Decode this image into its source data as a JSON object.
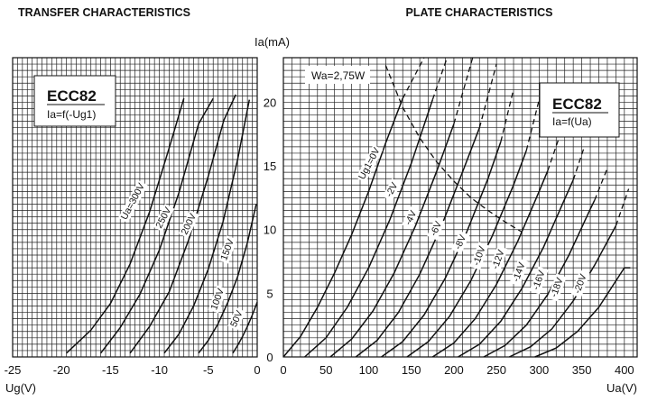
{
  "chart_data": [
    {
      "type": "line",
      "title": "TRANSFER CHARACTERISTICS",
      "xlabel": "Ug(V)",
      "ylabel": "",
      "xlim": [
        -25,
        0
      ],
      "ylim": [
        0,
        23.5
      ],
      "xticks": [
        "-25",
        "-20",
        "-15",
        "-10",
        "-5",
        "0"
      ],
      "legend_box": {
        "title": "ECC82",
        "subtitle": "Ia=f(-Ug1)"
      },
      "series": [
        {
          "name": "Ua=300V",
          "x": [
            -19.5,
            -17,
            -15,
            -13,
            -11,
            -9,
            -7.5
          ],
          "y": [
            0.3,
            2.1,
            4.2,
            7.3,
            11.4,
            16.4,
            20.3
          ]
        },
        {
          "name": "250V",
          "x": [
            -16,
            -14,
            -12,
            -10,
            -8,
            -6,
            -4.5
          ],
          "y": [
            0.3,
            2.3,
            4.9,
            8.4,
            12.9,
            18.3,
            20.3
          ]
        },
        {
          "name": "200V",
          "x": [
            -13,
            -11,
            -9,
            -7,
            -5,
            -3.4,
            -2.2
          ],
          "y": [
            0.3,
            2.4,
            5.1,
            9.2,
            14.2,
            18.6,
            20.6
          ]
        },
        {
          "name": "150V",
          "x": [
            -9.5,
            -8,
            -6.5,
            -5,
            -3.5,
            -2,
            -0.8
          ],
          "y": [
            0.3,
            1.8,
            4.0,
            6.9,
            10.6,
            15.5,
            20.2
          ]
        },
        {
          "name": "100V",
          "x": [
            -6,
            -5,
            -4,
            -3,
            -2,
            -1,
            -0.1
          ],
          "y": [
            0.3,
            1.3,
            2.6,
            4.3,
            6.3,
            9.0,
            12.0
          ]
        },
        {
          "name": "50V",
          "x": [
            -2.5,
            -2,
            -1.5,
            -1,
            -0.5,
            0
          ],
          "y": [
            0.3,
            0.9,
            1.6,
            2.4,
            3.3,
            4.3
          ]
        }
      ]
    },
    {
      "type": "line",
      "title": "PLATE CHARACTERISTICS",
      "xlabel": "Ua(V)",
      "ylabel": "Ia(mA)",
      "xlim": [
        0,
        415
      ],
      "ylim": [
        0,
        23.5
      ],
      "xticks": [
        "0",
        "50",
        "100",
        "150",
        "200",
        "250",
        "300",
        "350",
        "400"
      ],
      "yticks": [
        "0",
        "5",
        "10",
        "15",
        "20"
      ],
      "legend_box": {
        "title": "ECC82",
        "subtitle": "Ia=f(Ua)"
      },
      "annotation": "Wa=2,75W",
      "series": [
        {
          "name": "Ug1=0V",
          "x": [
            0,
            20,
            40,
            60,
            80,
            100,
            120,
            140
          ],
          "y": [
            0,
            1.6,
            3.9,
            6.6,
            9.6,
            13.0,
            16.8,
            20.3
          ]
        },
        {
          "name": "-2V",
          "x": [
            25,
            50,
            75,
            100,
            125,
            150,
            175
          ],
          "y": [
            0,
            1.5,
            3.9,
            7.0,
            10.8,
            15.2,
            20.2
          ]
        },
        {
          "name": "-4V",
          "x": [
            55,
            80,
            105,
            130,
            155,
            180,
            200
          ],
          "y": [
            0,
            1.4,
            3.6,
            6.6,
            10.3,
            14.6,
            18.3
          ]
        },
        {
          "name": "-6V",
          "x": [
            85,
            110,
            135,
            160,
            185,
            210,
            230
          ],
          "y": [
            0,
            1.3,
            3.5,
            6.5,
            10.2,
            14.5,
            18.0
          ]
        },
        {
          "name": "-8V",
          "x": [
            115,
            140,
            165,
            190,
            215,
            240,
            255
          ],
          "y": [
            0,
            1.2,
            3.3,
            6.2,
            9.8,
            14.0,
            16.9
          ]
        },
        {
          "name": "-10V",
          "x": [
            145,
            170,
            195,
            220,
            245,
            270,
            285
          ],
          "y": [
            0,
            1.2,
            3.2,
            6.0,
            9.5,
            13.5,
            16.2
          ]
        },
        {
          "name": "-12V",
          "x": [
            175,
            200,
            225,
            250,
            275,
            300,
            310
          ],
          "y": [
            0,
            1.1,
            3.0,
            5.7,
            9.1,
            13.0,
            14.6
          ]
        },
        {
          "name": "-14V",
          "x": [
            205,
            230,
            255,
            280,
            305,
            330,
            340
          ],
          "y": [
            0,
            1.0,
            2.8,
            5.4,
            8.6,
            12.4,
            13.9
          ]
        },
        {
          "name": "-16V",
          "x": [
            235,
            260,
            285,
            310,
            335,
            360,
            365
          ],
          "y": [
            0,
            0.9,
            2.5,
            4.9,
            8.0,
            11.6,
            12.3
          ]
        },
        {
          "name": "-18V",
          "x": [
            265,
            290,
            315,
            340,
            365,
            390
          ],
          "y": [
            0,
            0.8,
            2.2,
            4.4,
            7.2,
            10.3
          ]
        },
        {
          "name": "-20V",
          "x": [
            295,
            320,
            345,
            370,
            400
          ],
          "y": [
            0,
            0.7,
            2.0,
            3.9,
            7.0
          ]
        },
        {
          "name": "-20V end",
          "x": [
            400,
            407
          ],
          "y": [
            7.0,
            7.0
          ]
        }
      ],
      "dashed_extensions": [
        {
          "x": [
            140,
            165
          ],
          "y": [
            20.3,
            23.5
          ]
        },
        {
          "x": [
            175,
            192
          ],
          "y": [
            20.2,
            23.5
          ]
        },
        {
          "x": [
            200,
            222
          ],
          "y": [
            18.3,
            23.5
          ]
        },
        {
          "x": [
            230,
            250
          ],
          "y": [
            18.0,
            23.0
          ]
        },
        {
          "x": [
            255,
            270
          ],
          "y": [
            16.9,
            21.0
          ]
        },
        {
          "x": [
            285,
            300
          ],
          "y": [
            16.2,
            20.2
          ]
        },
        {
          "x": [
            310,
            330
          ],
          "y": [
            14.6,
            18.5
          ]
        },
        {
          "x": [
            340,
            352
          ],
          "y": [
            13.9,
            16.3
          ]
        },
        {
          "x": [
            365,
            380
          ],
          "y": [
            12.3,
            14.8
          ]
        },
        {
          "x": [
            390,
            405
          ],
          "y": [
            10.3,
            13.2
          ]
        }
      ],
      "wa_curve": {
        "x": [
          120,
          140,
          160,
          180,
          200,
          220,
          240,
          260,
          280
        ],
        "y": [
          22.9,
          19.6,
          17.2,
          15.3,
          13.8,
          12.5,
          11.5,
          10.6,
          9.8
        ]
      }
    }
  ]
}
